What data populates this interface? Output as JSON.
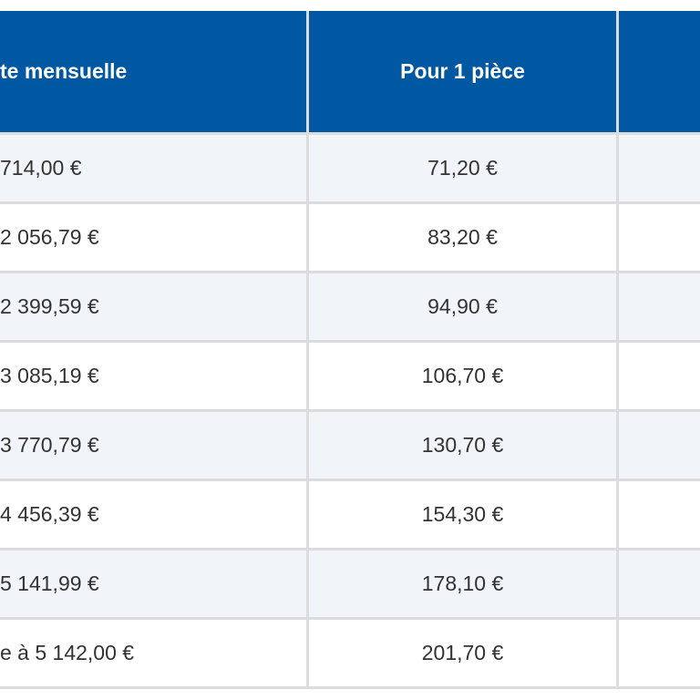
{
  "table": {
    "header": [
      "te mensuelle",
      "Pour 1 pièce"
    ],
    "rows": [
      [
        "714,00 €",
        "71,20 €"
      ],
      [
        "2 056,79 €",
        "83,20 €"
      ],
      [
        "2 399,59 €",
        "94,90 €"
      ],
      [
        "3 085,19 €",
        "106,70 €"
      ],
      [
        "3 770,79 €",
        "130,70 €"
      ],
      [
        "4 456,39 €",
        "154,30 €"
      ],
      [
        "5 141,99 €",
        "178,10 €"
      ],
      [
        "e à 5 142,00 €",
        "201,70 €"
      ]
    ]
  }
}
